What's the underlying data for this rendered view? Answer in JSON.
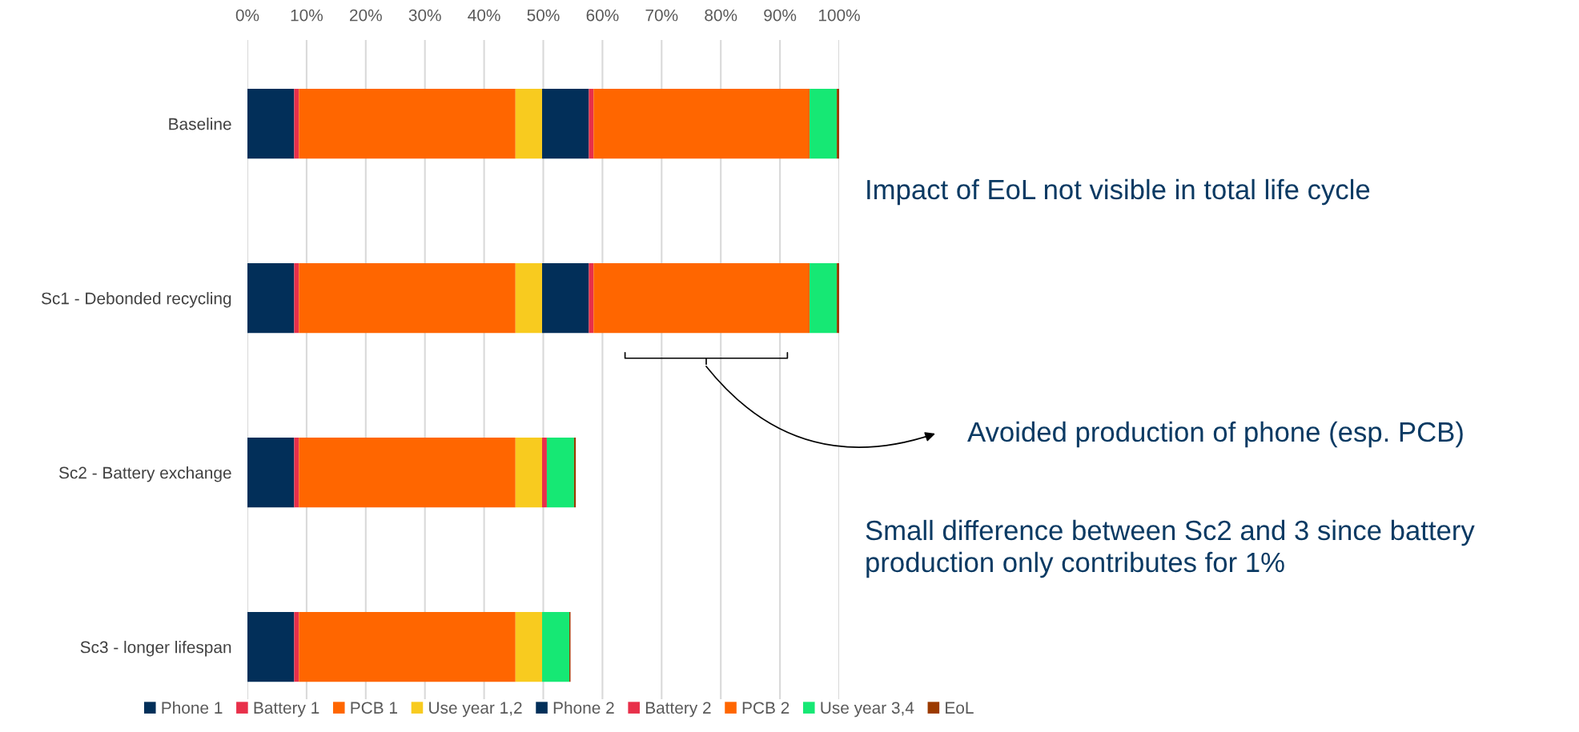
{
  "chart_data": {
    "type": "bar",
    "orientation": "horizontal",
    "stacked": true,
    "categories": [
      "Baseline",
      "Sc1 - Debonded recycling",
      "Sc2 - Battery exchange",
      "Sc3 - longer lifespan"
    ],
    "series": [
      {
        "name": "Phone 1",
        "color": "#022f59",
        "values": [
          7.9,
          7.9,
          7.9,
          7.9
        ]
      },
      {
        "name": "Battery 1",
        "color": "#e8304a",
        "values": [
          0.8,
          0.8,
          0.8,
          0.8
        ]
      },
      {
        "name": "PCB 1",
        "color": "#ff6600",
        "values": [
          36.6,
          36.6,
          36.6,
          36.6
        ]
      },
      {
        "name": "Use year 1,2",
        "color": "#f8cb1f",
        "values": [
          4.5,
          4.5,
          4.5,
          4.5
        ]
      },
      {
        "name": "Phone 2",
        "color": "#022f59",
        "values": [
          7.9,
          7.9,
          0,
          0
        ]
      },
      {
        "name": "Battery 2",
        "color": "#e8304a",
        "values": [
          0.8,
          0.8,
          0.8,
          0
        ]
      },
      {
        "name": "PCB 2",
        "color": "#ff6600",
        "values": [
          36.5,
          36.5,
          0,
          0
        ]
      },
      {
        "name": "Use year 3,4",
        "color": "#16e874",
        "values": [
          4.6,
          4.6,
          4.6,
          4.6
        ]
      },
      {
        "name": "EoL",
        "color": "#9b3a00",
        "values": [
          0.4,
          0.4,
          0.3,
          0.2
        ]
      }
    ],
    "xlim": [
      0,
      100
    ],
    "xticks": [
      {
        "value": 0,
        "label": "0%"
      },
      {
        "value": 10,
        "label": "10%"
      },
      {
        "value": 20,
        "label": "20%"
      },
      {
        "value": 30,
        "label": "30%"
      },
      {
        "value": 40,
        "label": "40%"
      },
      {
        "value": 50,
        "label": "50%"
      },
      {
        "value": 60,
        "label": "60%"
      },
      {
        "value": 70,
        "label": "70%"
      },
      {
        "value": 80,
        "label": "80%"
      },
      {
        "value": 90,
        "label": "90%"
      },
      {
        "value": 100,
        "label": "100%"
      }
    ],
    "grid": "x",
    "legend": "bottom",
    "annotations": [
      "Impact of EoL not visible in total life cycle",
      "Avoided production of phone (esp. PCB)",
      "Small difference between Sc2 and 3 since battery production only contributes for 1%"
    ]
  }
}
